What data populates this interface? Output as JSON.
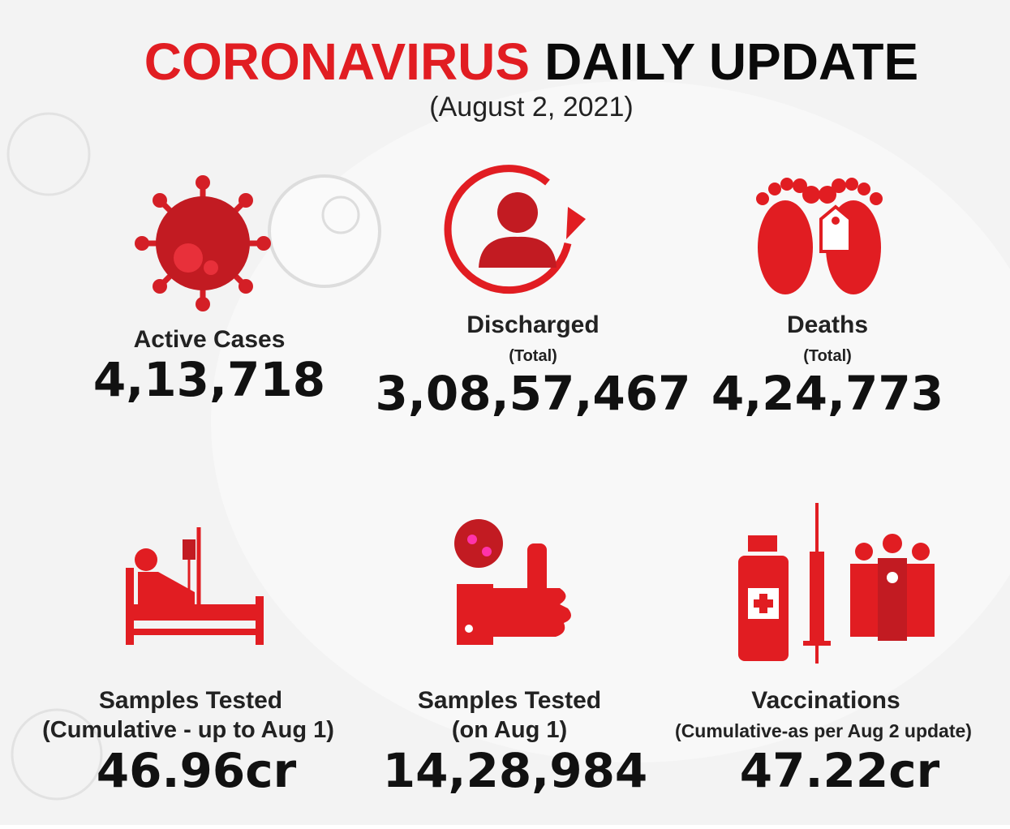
{
  "header": {
    "title_red": "CORONAVIRUS",
    "title_black": "DAILY UPDATE",
    "date": "(August 2, 2021)"
  },
  "stats": [
    {
      "label": "Active Cases",
      "value": "4,13,718"
    },
    {
      "label": "Discharged",
      "note": "(Total)",
      "value": "3,08,57,467"
    },
    {
      "label": "Deaths",
      "note": "(Total)",
      "value": "4,24,773"
    },
    {
      "label": "Samples Tested",
      "note": "(Cumulative - up to Aug 1)",
      "value": "46.96cr"
    },
    {
      "label": "Samples Tested",
      "note": "(on Aug 1)",
      "value": "14,28,984"
    },
    {
      "label": "Vaccinations",
      "note": "(Cumulative-as per Aug 2 update)",
      "value": "47.22cr"
    }
  ]
}
